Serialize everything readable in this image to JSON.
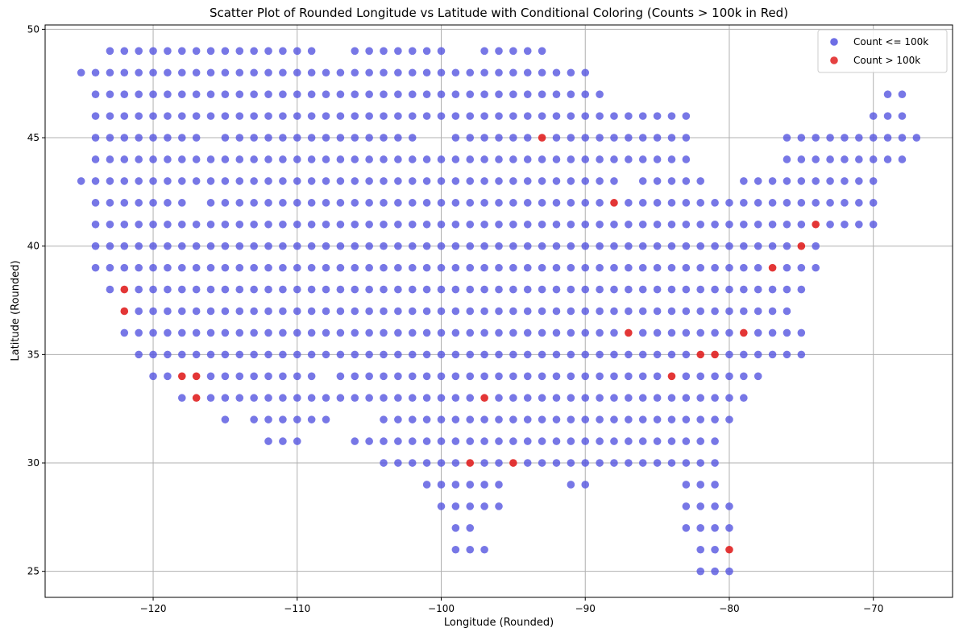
{
  "chart_data": {
    "type": "scatter",
    "title": "Scatter Plot of Rounded Longitude vs Latitude with Conditional Coloring (Counts > 100k in Red)",
    "xlabel": "Longitude (Rounded)",
    "ylabel": "Latitude (Rounded)",
    "xlim": [
      -127.5,
      -64.5
    ],
    "ylim": [
      23.8,
      50.2
    ],
    "xticks": [
      -120,
      -110,
      -100,
      -90,
      -80,
      -70
    ],
    "yticks": [
      25,
      30,
      35,
      40,
      45,
      50
    ],
    "xtick_labels": [
      "−120",
      "−110",
      "−100",
      "−90",
      "−80",
      "−70"
    ],
    "ytick_labels": [
      "25",
      "30",
      "35",
      "40",
      "45",
      "50"
    ],
    "grid": true,
    "legend_position": "top-right",
    "series": [
      {
        "name": "Count <= 100k",
        "color": "#5555e0",
        "rows": [
          {
            "y": 49,
            "x_ranges": [
              [
                -123,
                -109
              ],
              [
                -106,
                -100
              ],
              [
                -97,
                -93
              ]
            ]
          },
          {
            "y": 48,
            "x_ranges": [
              [
                -125,
                -125
              ],
              [
                -124,
                -90
              ]
            ]
          },
          {
            "y": 47,
            "x_ranges": [
              [
                -124,
                -89
              ],
              [
                -69,
                -68
              ]
            ]
          },
          {
            "y": 46,
            "x_ranges": [
              [
                -124,
                -83
              ],
              [
                -70,
                -68
              ]
            ]
          },
          {
            "y": 45,
            "x_ranges": [
              [
                -124,
                -117
              ],
              [
                -115,
                -102
              ],
              [
                -99,
                -94
              ],
              [
                -92,
                -83
              ],
              [
                -76,
                -67
              ]
            ]
          },
          {
            "y": 44,
            "x_ranges": [
              [
                -124,
                -102
              ],
              [
                -101,
                -83
              ],
              [
                -76,
                -68
              ]
            ]
          },
          {
            "y": 43,
            "x_ranges": [
              [
                -125,
                -102
              ],
              [
                -101,
                -88
              ],
              [
                -86,
                -82
              ],
              [
                -79,
                -70
              ]
            ]
          },
          {
            "y": 42,
            "x_ranges": [
              [
                -124,
                -118
              ],
              [
                -116,
                -104
              ],
              [
                -103,
                -89
              ],
              [
                -87,
                -70
              ]
            ]
          },
          {
            "y": 41,
            "x_ranges": [
              [
                -124,
                -75
              ],
              [
                -73,
                -70
              ]
            ]
          },
          {
            "y": 40,
            "x_ranges": [
              [
                -124,
                -76
              ],
              [
                -74,
                -74
              ]
            ]
          },
          {
            "y": 39,
            "x_ranges": [
              [
                -124,
                -78
              ],
              [
                -76,
                -74
              ]
            ]
          },
          {
            "y": 38,
            "x_ranges": [
              [
                -123,
                -123
              ],
              [
                -121,
                -75
              ]
            ]
          },
          {
            "y": 37,
            "x_ranges": [
              [
                -121,
                -76
              ]
            ]
          },
          {
            "y": 36,
            "x_ranges": [
              [
                -122,
                -88
              ],
              [
                -86,
                -80
              ],
              [
                -78,
                -75
              ]
            ]
          },
          {
            "y": 35,
            "x_ranges": [
              [
                -121,
                -83
              ],
              [
                -80,
                -75
              ]
            ]
          },
          {
            "y": 34,
            "x_ranges": [
              [
                -120,
                -119
              ],
              [
                -116,
                -109
              ],
              [
                -107,
                -85
              ],
              [
                -83,
                -78
              ]
            ]
          },
          {
            "y": 33,
            "x_ranges": [
              [
                -118,
                -118
              ],
              [
                -116,
                -98
              ],
              [
                -96,
                -79
              ]
            ]
          },
          {
            "y": 32,
            "x_ranges": [
              [
                -115,
                -115
              ],
              [
                -113,
                -108
              ],
              [
                -104,
                -80
              ]
            ]
          },
          {
            "y": 31,
            "x_ranges": [
              [
                -112,
                -110
              ],
              [
                -106,
                -81
              ]
            ]
          },
          {
            "y": 30,
            "x_ranges": [
              [
                -104,
                -99
              ],
              [
                -97,
                -96
              ],
              [
                -94,
                -81
              ]
            ]
          },
          {
            "y": 29,
            "x_ranges": [
              [
                -101,
                -96
              ],
              [
                -91,
                -90
              ],
              [
                -83,
                -81
              ]
            ]
          },
          {
            "y": 28,
            "x_ranges": [
              [
                -100,
                -96
              ],
              [
                -83,
                -80
              ]
            ]
          },
          {
            "y": 27,
            "x_ranges": [
              [
                -99,
                -98
              ],
              [
                -83,
                -80
              ]
            ]
          },
          {
            "y": 26,
            "x_ranges": [
              [
                -99,
                -97
              ],
              [
                -82,
                -81
              ]
            ]
          },
          {
            "y": 25,
            "x_ranges": [
              [
                -82,
                -80
              ]
            ]
          }
        ]
      },
      {
        "name": "Count > 100k",
        "color": "#e02020",
        "points": [
          [
            -93,
            45
          ],
          [
            -88,
            42
          ],
          [
            -74,
            41
          ],
          [
            -75,
            40
          ],
          [
            -77,
            39
          ],
          [
            -122,
            38
          ],
          [
            -122,
            37
          ],
          [
            -87,
            36
          ],
          [
            -79,
            36
          ],
          [
            -82,
            35
          ],
          [
            -81,
            35
          ],
          [
            -118,
            34
          ],
          [
            -117,
            34
          ],
          [
            -84,
            34
          ],
          [
            -117,
            33
          ],
          [
            -97,
            33
          ],
          [
            -98,
            30
          ],
          [
            -95,
            30
          ],
          [
            -80,
            26
          ]
        ]
      }
    ]
  }
}
